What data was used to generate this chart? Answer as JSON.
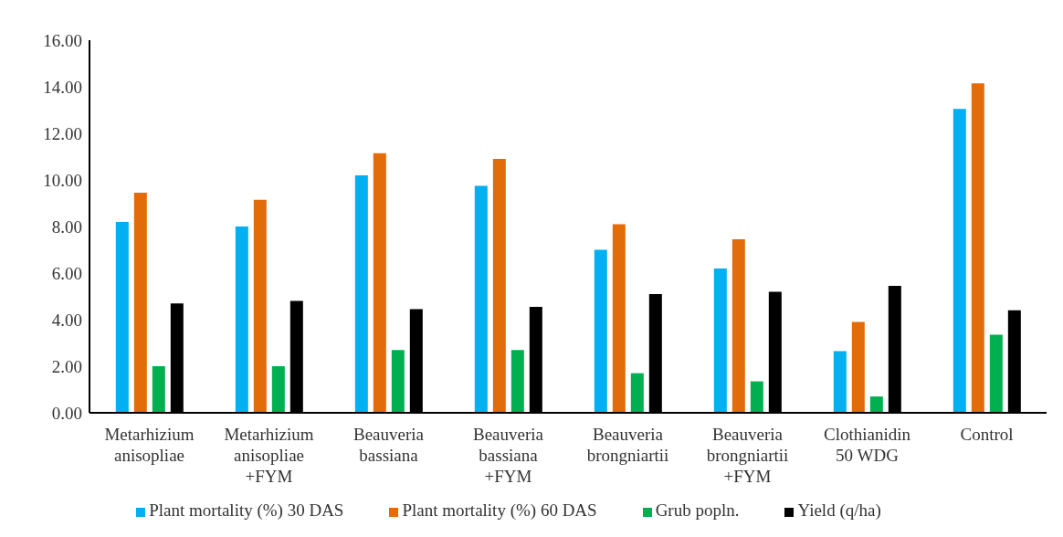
{
  "chart_data": {
    "type": "bar",
    "categories": [
      "Metarhizium anisopliae",
      "Metarhizium anisopliae +FYM",
      "Beauveria bassiana",
      "Beauveria bassiana +FYM",
      "Beauveria brongniartii",
      "Beauveria brongniartii +FYM",
      "Clothianidin 50 WDG",
      "Control"
    ],
    "series": [
      {
        "name": "Plant mortality (%) 30 DAS",
        "color": "#00b0f0",
        "values": [
          8.2,
          8.0,
          10.2,
          9.75,
          7.0,
          6.2,
          2.65,
          13.05
        ]
      },
      {
        "name": "Plant mortality (%) 60 DAS",
        "color": "#e36c0a",
        "values": [
          9.45,
          9.15,
          11.15,
          10.9,
          8.1,
          7.45,
          3.9,
          14.15
        ]
      },
      {
        "name": "Grub popln.",
        "color": "#00b050",
        "values": [
          2.0,
          2.0,
          2.7,
          2.7,
          1.7,
          1.35,
          0.7,
          3.35
        ]
      },
      {
        "name": "Yield (q/ha)",
        "color": "#000000",
        "values": [
          4.7,
          4.8,
          4.45,
          4.55,
          5.1,
          5.2,
          5.45,
          4.4
        ]
      }
    ],
    "ylim": [
      0,
      16
    ],
    "yticks": [
      {
        "value": 0,
        "label": "0.00"
      },
      {
        "value": 2,
        "label": "2.00"
      },
      {
        "value": 4,
        "label": "4.00"
      },
      {
        "value": 6,
        "label": "6.00"
      },
      {
        "value": 8,
        "label": "8.00"
      },
      {
        "value": 10,
        "label": "10.00"
      },
      {
        "value": 12,
        "label": "12.00"
      },
      {
        "value": 14,
        "label": "14.00"
      },
      {
        "value": 16,
        "label": "16.00"
      }
    ],
    "grid": false,
    "legend": "bottom"
  }
}
